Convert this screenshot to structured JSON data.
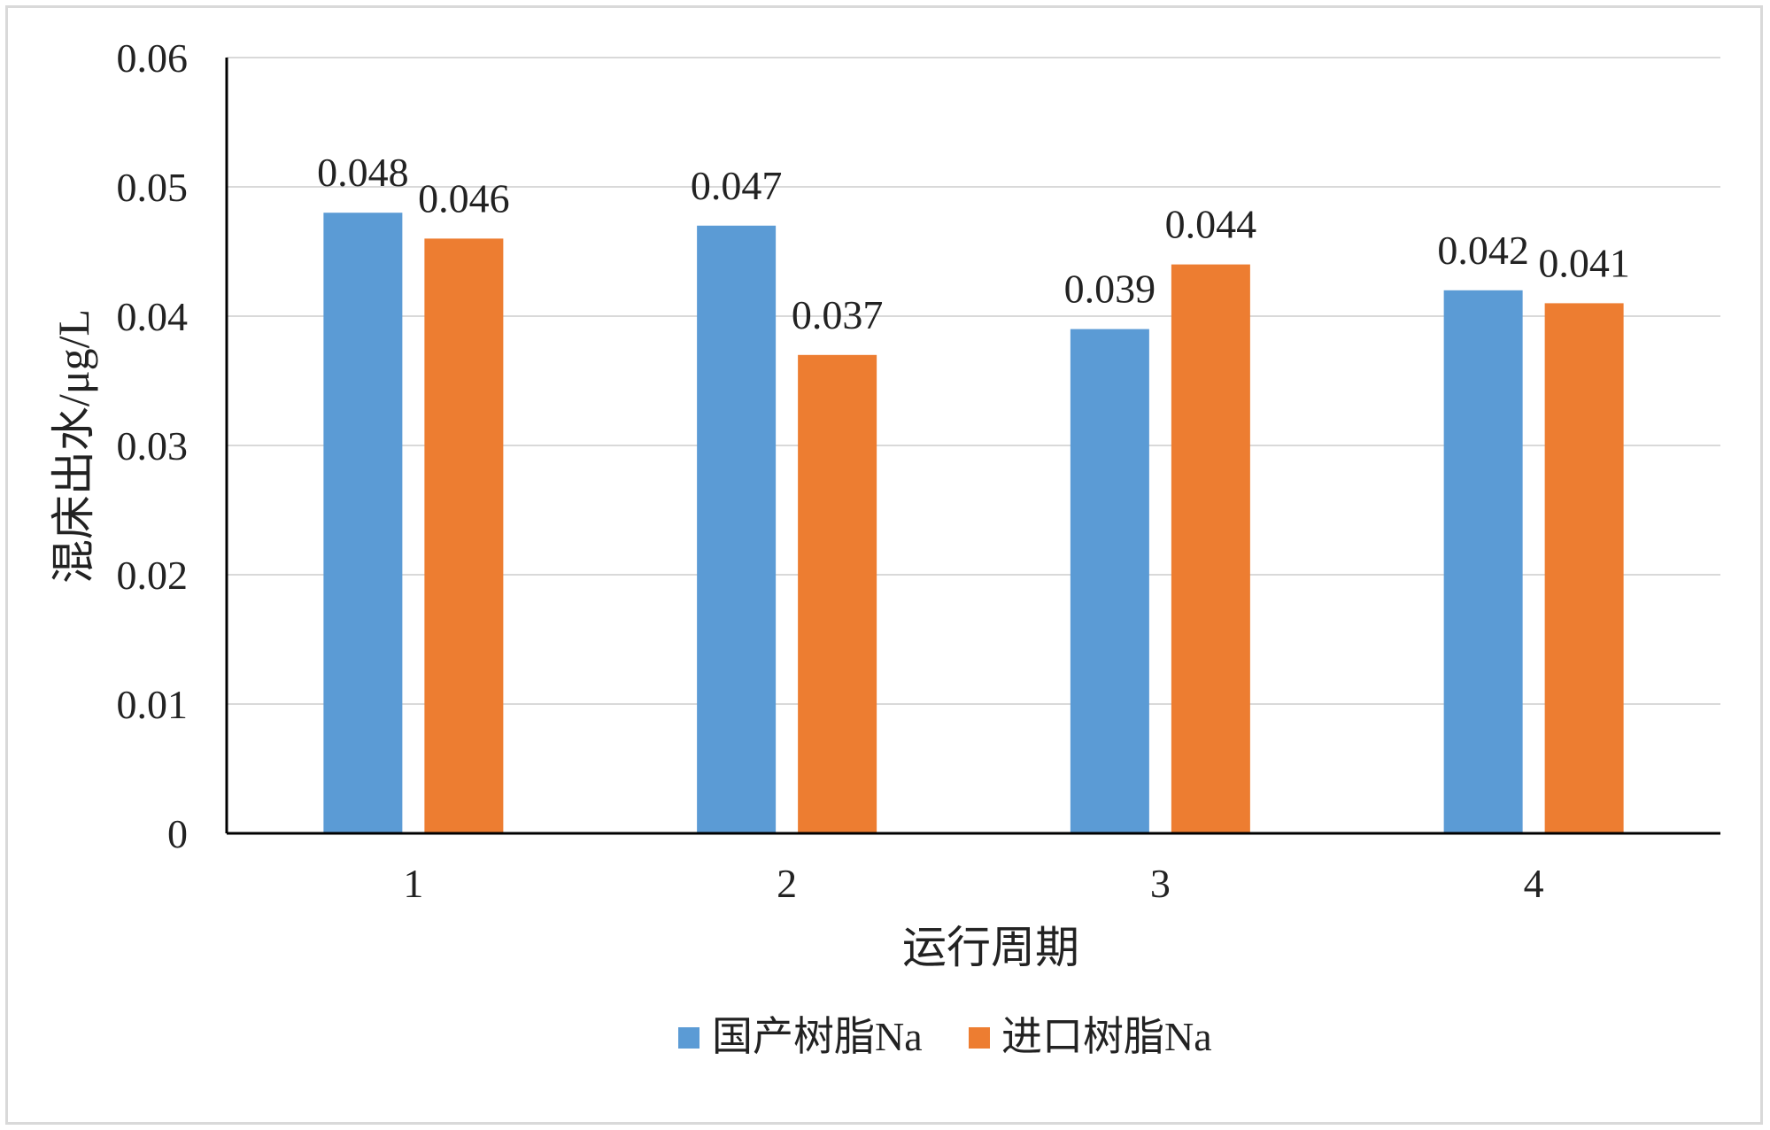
{
  "chart_data": {
    "type": "bar",
    "title": "",
    "xlabel": "运行周期",
    "ylabel": "混床出水/μg/L",
    "categories": [
      "1",
      "2",
      "3",
      "4"
    ],
    "series": [
      {
        "name": "国产树脂Na",
        "values": [
          0.048,
          0.047,
          0.039,
          0.042
        ],
        "color": "#5b9bd5"
      },
      {
        "name": "进口树脂Na",
        "values": [
          0.046,
          0.037,
          0.044,
          0.041
        ],
        "color": "#ed7d31"
      }
    ],
    "data_labels": [
      [
        "0.048",
        "0.047",
        "0.039",
        "0.042"
      ],
      [
        "0.046",
        "0.037",
        "0.044",
        "0.041"
      ]
    ],
    "ylim": [
      0,
      0.06
    ],
    "yticks": [
      "0",
      "0.01",
      "0.02",
      "0.03",
      "0.04",
      "0.05",
      "0.06"
    ],
    "grid": true,
    "legend_position": "bottom-center"
  }
}
